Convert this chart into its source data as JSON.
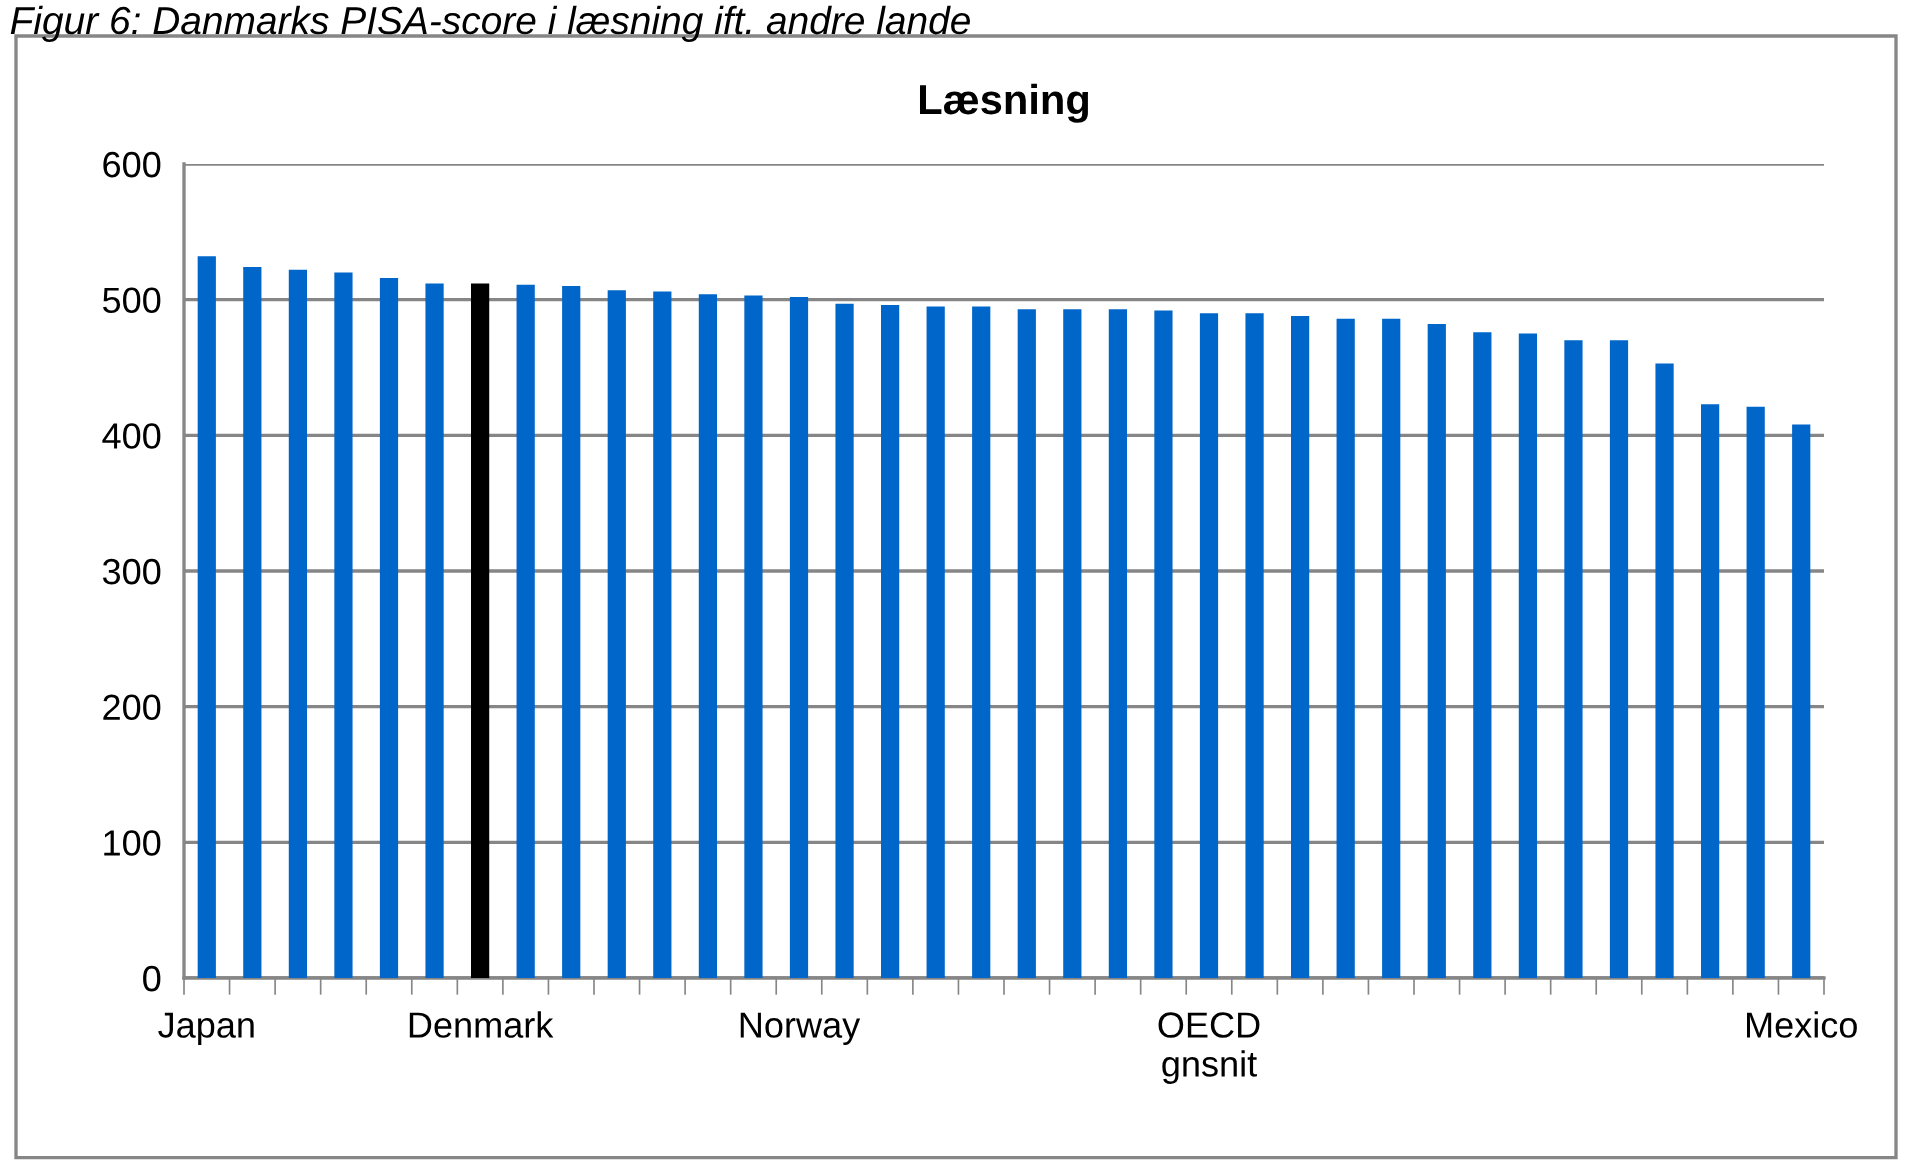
{
  "chart_data": {
    "type": "bar",
    "title": "Læsning",
    "annotations": [
      "Figur 6: Danmarks PISA-score i læsning ift. andre lande"
    ],
    "categories": [
      "Japan",
      null,
      null,
      null,
      null,
      null,
      "Denmark",
      null,
      null,
      null,
      null,
      null,
      null,
      "Norway",
      null,
      null,
      null,
      null,
      null,
      null,
      null,
      null,
      "OECD\ngnsnit",
      null,
      null,
      null,
      null,
      null,
      null,
      null,
      null,
      null,
      null,
      null,
      null,
      "Mexico"
    ],
    "values": [
      532,
      524,
      522,
      520,
      516,
      512,
      512,
      511,
      510,
      507,
      506,
      504,
      503,
      502,
      497,
      496,
      495,
      495,
      493,
      493,
      493,
      492,
      490,
      490,
      488,
      486,
      486,
      482,
      476,
      475,
      470,
      470,
      453,
      423,
      421,
      408
    ],
    "colors": [
      "#0066c9",
      "#0066c9",
      "#0066c9",
      "#0066c9",
      "#0066c9",
      "#0066c9",
      "#000000",
      "#0066c9",
      "#0066c9",
      "#0066c9",
      "#0066c9",
      "#0066c9",
      "#0066c9",
      "#0066c9",
      "#0066c9",
      "#0066c9",
      "#0066c9",
      "#0066c9",
      "#0066c9",
      "#0066c9",
      "#0066c9",
      "#0066c9",
      "#0066c9",
      "#0066c9",
      "#0066c9",
      "#0066c9",
      "#0066c9",
      "#0066c9",
      "#0066c9",
      "#0066c9",
      "#0066c9",
      "#0066c9",
      "#0066c9",
      "#0066c9",
      "#0066c9",
      "#0066c9"
    ],
    "ylim": [
      0,
      600
    ],
    "yticks": [
      0,
      100,
      200,
      300,
      400,
      500,
      600
    ],
    "grid": "y",
    "legend": false
  }
}
